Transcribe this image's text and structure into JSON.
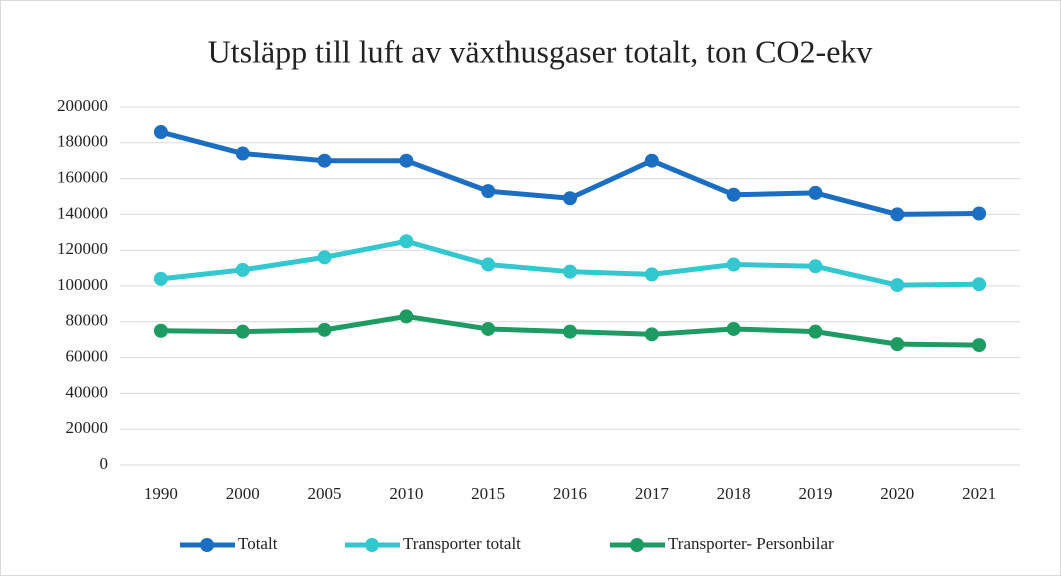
{
  "chart_data": {
    "type": "line",
    "title": "Utsläpp till luft av växthusgaser totalt, ton CO2-ekv",
    "categories": [
      "1990",
      "2000",
      "2005",
      "2010",
      "2015",
      "2016",
      "2017",
      "2018",
      "2019",
      "2020",
      "2021"
    ],
    "series": [
      {
        "name": "Totalt",
        "color": "#1b6ec2",
        "values": [
          186000,
          174000,
          170000,
          170000,
          153000,
          149000,
          170000,
          151000,
          152000,
          140000,
          140500
        ]
      },
      {
        "name": "Transporter totalt",
        "color": "#33c7d0",
        "values": [
          104000,
          109000,
          116000,
          125000,
          112000,
          108000,
          106500,
          112000,
          111000,
          100500,
          101000
        ]
      },
      {
        "name": "Transporter- Personbilar",
        "color": "#1e9b63",
        "values": [
          75000,
          74500,
          75500,
          83000,
          76000,
          74500,
          73000,
          76000,
          74500,
          67500,
          67000
        ]
      }
    ],
    "ylim": [
      0,
      200000
    ],
    "yticks": [
      0,
      20000,
      40000,
      60000,
      80000,
      100000,
      120000,
      140000,
      160000,
      180000,
      200000
    ],
    "grid": true,
    "legend": "bottom"
  }
}
